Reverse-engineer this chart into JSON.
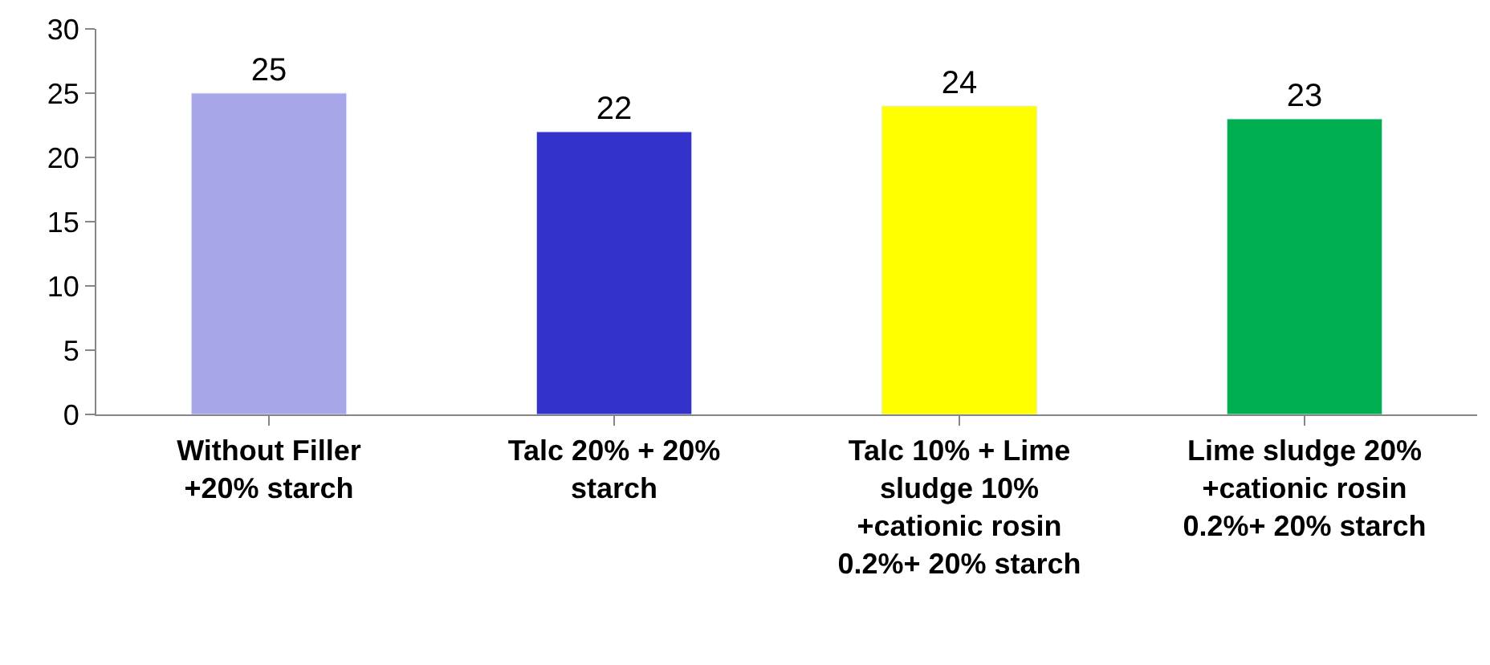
{
  "chart_data": {
    "type": "bar",
    "categories": [
      "Without Filler +20% starch",
      "Talc 20% + 20% starch",
      "Talc 10% + Lime sludge 10% +cationic rosin 0.2%+ 20% starch",
      "Lime sludge 20% +cationic rosin 0.2%+ 20% starch"
    ],
    "values": [
      25,
      22,
      24,
      23
    ],
    "colors": [
      "#a6a6e8",
      "#3333cc",
      "#ffff00",
      "#00b050"
    ],
    "ylim": [
      0,
      30
    ],
    "yticks": [
      0,
      5,
      10,
      15,
      20,
      25,
      30
    ],
    "data_labels": true
  }
}
